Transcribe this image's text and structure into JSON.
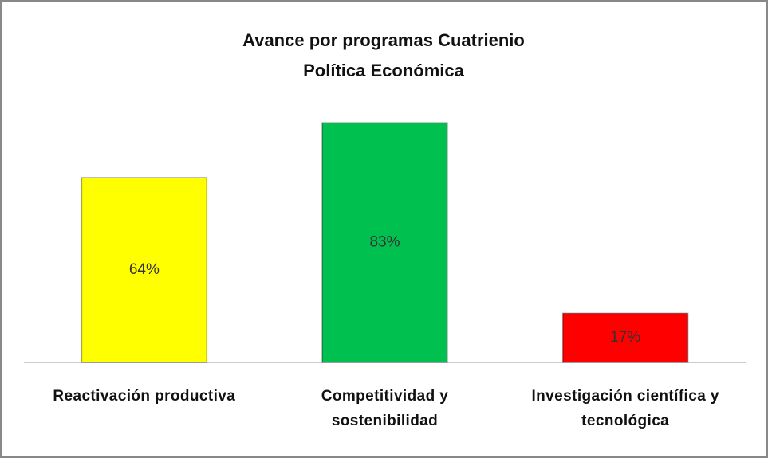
{
  "chart_data": {
    "type": "bar",
    "title": [
      "Avance  por programas Cuatrienio",
      "Política Económica"
    ],
    "categories": [
      "Reactivación  productiva",
      "Competitividad y sostenibilidad",
      "Investigación científica y tecnológica"
    ],
    "values": [
      64,
      83,
      17
    ],
    "value_labels": [
      "64%",
      "83%",
      "17%"
    ],
    "colors": [
      "#ffff00",
      "#00c050",
      "#ff0000"
    ],
    "ylim": [
      0,
      100
    ]
  }
}
